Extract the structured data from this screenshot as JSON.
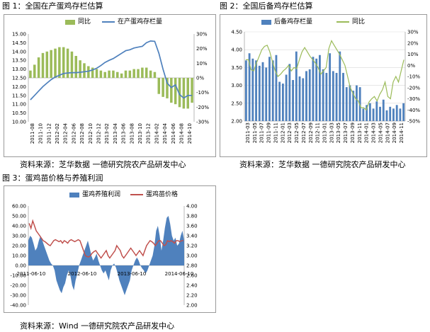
{
  "captions": {
    "fig1": "图 1：全国在产蛋鸡存栏估算",
    "fig2": "图 2：全国后备鸡存栏估算",
    "fig3": "图 3：蛋鸡苗价格与养殖利润",
    "src1": "资料来源：芝华数据   一德研究院农产品研发中心",
    "src2": "资料来源：芝华数据   一德研究院农产品研发中心",
    "src3": "资料来源：Wind 一德研究院农产品研发中心"
  },
  "colors": {
    "bar_green": "#9bbb59",
    "line_blue": "#4f81bd",
    "bar_blue": "#4f81bd",
    "line_green": "#9bbb59",
    "line_red": "#c0504d",
    "area_blue": "#4f81bd"
  },
  "chart_data": [
    {
      "type": "bar",
      "legend": [
        "同比",
        "在产蛋鸡存栏量"
      ],
      "xlabels": [
        "2011-08",
        "2011-10",
        "2011-12",
        "2012-02",
        "2012-04",
        "2012-06",
        "2012-08",
        "2012-10",
        "2012-12",
        "2013-02",
        "2013-04",
        "2013-06",
        "2013-08",
        "2013-10",
        "2013-12",
        "2014-02",
        "2014-04",
        "2014-06",
        "2014-08",
        "2014-10"
      ],
      "y_left": {
        "min": 10.0,
        "max": 15.0,
        "ticks": [
          "10.00",
          "10.50",
          "11.00",
          "11.50",
          "12.00",
          "12.50",
          "13.00",
          "13.50",
          "14.00",
          "14.50",
          "15.00"
        ]
      },
      "y_right": {
        "min": -30,
        "max": 30,
        "ticks": [
          "-30%",
          "-20%",
          "-10%",
          "0%",
          "10%",
          "20%",
          "30%"
        ]
      },
      "series": [
        {
          "name": "同比",
          "axis": "right",
          "kind": "bar",
          "values": [
            5,
            9,
            14,
            17,
            18,
            19,
            20,
            21,
            21,
            20,
            18,
            15,
            12,
            10,
            8,
            7,
            6,
            5,
            4,
            5,
            5,
            4,
            3,
            5,
            5,
            6,
            6,
            7,
            7,
            5,
            4,
            -11,
            -13,
            -14,
            -17,
            -18,
            -20,
            -21,
            -21,
            -17
          ]
        },
        {
          "name": "在产蛋鸡存栏量",
          "axis": "left",
          "kind": "line",
          "values": [
            11.25,
            11.5,
            11.75,
            12.0,
            12.2,
            12.4,
            12.55,
            12.65,
            12.75,
            12.78,
            12.8,
            12.8,
            12.82,
            12.85,
            12.88,
            12.95,
            13.05,
            13.2,
            13.38,
            13.5,
            13.6,
            13.75,
            13.9,
            14.05,
            14.1,
            14.2,
            14.25,
            14.3,
            14.5,
            14.6,
            14.58,
            13.9,
            13.0,
            12.2,
            11.95,
            12.1,
            11.55,
            11.35,
            11.5,
            11.5
          ]
        }
      ]
    },
    {
      "type": "bar",
      "legend": [
        "后备鸡存栏量",
        "同比"
      ],
      "xlabels": [
        "2011-03",
        "2011-05",
        "2011-07",
        "2011-09",
        "2011-11",
        "2012-01",
        "2012-03",
        "2012-05",
        "2012-07",
        "2012-09",
        "2012-11",
        "2013-01",
        "2013-03",
        "2013-05",
        "2013-07",
        "2013-09",
        "2013-11",
        "2014-01",
        "2014-03",
        "2014-05",
        "2014-07",
        "2014-09",
        "2014-11"
      ],
      "y_left": {
        "min": 2.0,
        "max": 4.5,
        "ticks": [
          "2.00",
          "2.50",
          "3.00",
          "3.50",
          "4.00",
          "4.50"
        ]
      },
      "y_right": {
        "min": -50,
        "max": 30,
        "ticks": [
          "-50%",
          "-40%",
          "-30%",
          "-20%",
          "-10%",
          "0%",
          "10%",
          "20%",
          "30%"
        ]
      },
      "series": [
        {
          "name": "后备鸡存栏量",
          "axis": "left",
          "kind": "bar",
          "values": [
            3.7,
            3.9,
            3.75,
            3.7,
            3.55,
            3.65,
            3.5,
            3.8,
            3.7,
            3.85,
            3.1,
            3.05,
            3.3,
            3.6,
            3.15,
            3.95,
            3.25,
            3.2,
            3.4,
            3.45,
            3.8,
            3.75,
            3.85,
            3.45,
            3.35,
            3.9,
            3.4,
            3.35,
            3.95,
            3.35,
            2.95,
            3.0,
            2.85,
            3.0,
            2.95,
            2.35,
            2.45,
            2.5,
            2.35,
            2.55,
            2.4,
            2.6,
            2.3,
            2.4,
            2.35,
            2.45,
            2.35,
            2.5
          ]
        },
        {
          "name": "同比",
          "axis": "right",
          "kind": "line",
          "values": [
            5,
            5,
            -4,
            -5,
            2,
            8,
            14,
            17,
            18,
            12,
            3,
            -5,
            -10,
            -8,
            -5,
            -3,
            0,
            -5,
            -2,
            -3,
            5,
            12,
            16,
            12,
            8,
            5,
            2,
            -2,
            -8,
            -5,
            -2,
            15,
            22,
            18,
            14,
            10,
            5,
            0,
            -10,
            -20,
            -25,
            -30,
            -32,
            -38,
            -38,
            -40,
            -33,
            -30,
            -28,
            -32,
            -26,
            -22,
            -15,
            -28,
            -30,
            -15,
            -10,
            -15,
            -5,
            5
          ]
        }
      ]
    },
    {
      "type": "area",
      "legend": [
        "蛋鸡养殖利润",
        "蛋鸡苗价格"
      ],
      "xlabels": [
        "2011-06-10",
        "2012-06-10",
        "2013-06-10",
        "2014-06-10"
      ],
      "y_left": {
        "min": -40,
        "max": 60,
        "ticks": [
          "-40.00",
          "-30.00",
          "-20.00",
          "-10.00",
          "0.00",
          "10.00",
          "20.00",
          "30.00",
          "40.00",
          "50.00",
          "60.00"
        ]
      },
      "y_right": {
        "min": 2.0,
        "max": 4.0,
        "ticks": [
          "2.00",
          "2.20",
          "2.40",
          "2.60",
          "2.80",
          "3.00",
          "3.20",
          "3.40",
          "3.60",
          "3.80",
          "4.00"
        ]
      },
      "series": [
        {
          "name": "蛋鸡养殖利润",
          "axis": "left",
          "kind": "area",
          "values": [
            25,
            30,
            28,
            22,
            15,
            18,
            25,
            30,
            25,
            20,
            15,
            10,
            5,
            2,
            0,
            -5,
            -15,
            -20,
            -25,
            -28,
            -22,
            -18,
            -10,
            -5,
            -10,
            -20,
            -25,
            -15,
            -8,
            0,
            5,
            10,
            15,
            20,
            25,
            18,
            10,
            5,
            8,
            12,
            5,
            0,
            -5,
            -8,
            -5,
            -10,
            -15,
            -5,
            0,
            2,
            -2,
            -8,
            -15,
            -20,
            -25,
            -30,
            -25,
            -20,
            -15,
            -5,
            0,
            5,
            8,
            5,
            0,
            -3,
            -5,
            -8,
            -5,
            0,
            5,
            10,
            20,
            35,
            40,
            30,
            15,
            25,
            38,
            48,
            50,
            42,
            30,
            25,
            28,
            20,
            22,
            30,
            35,
            25
          ]
        },
        {
          "name": "蛋鸡苗价格",
          "axis": "right",
          "kind": "line",
          "values": [
            3.65,
            3.55,
            3.7,
            3.6,
            3.5,
            3.45,
            3.4,
            3.35,
            3.3,
            3.28,
            3.25,
            3.22,
            3.2,
            3.25,
            3.3,
            3.32,
            3.3,
            3.28,
            3.3,
            3.25,
            3.3,
            3.28,
            3.25,
            3.3,
            3.32,
            3.3,
            3.28,
            3.3,
            3.32,
            3.3,
            3.2,
            3.1,
            3.0,
            2.98,
            2.97,
            3.0,
            3.05,
            3.08,
            3.1,
            3.05,
            3.0,
            2.95,
            3.0,
            3.05,
            3.1,
            3.0,
            2.95,
            3.0,
            3.05,
            3.1,
            3.2,
            3.15,
            3.1,
            3.0,
            2.95,
            3.0,
            3.05,
            3.1,
            3.15,
            3.1,
            3.05,
            3.0,
            3.05,
            3.1,
            3.05,
            3.0,
            3.1,
            3.2,
            3.25,
            3.3,
            3.28,
            3.25,
            3.2,
            3.25,
            3.3,
            3.3,
            3.25,
            3.2,
            3.22,
            3.3,
            3.28,
            3.3,
            3.28,
            3.25,
            3.3,
            3.3,
            3.28,
            3.3,
            3.3
          ]
        }
      ]
    }
  ]
}
